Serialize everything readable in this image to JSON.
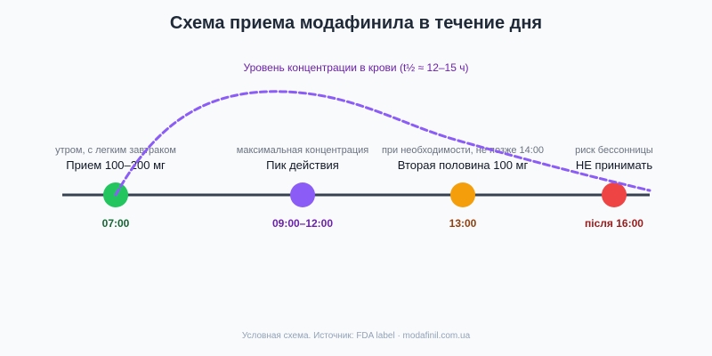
{
  "title": "Схема приема модафинила в течение дня",
  "curve_label": "Уровень концентрации в крови (t½ ≈ 12–15 ч)",
  "footer": "Условная схема. Источник: FDA label · modafinil.com.ua",
  "colors": {
    "axis": "#374151",
    "curve": "#8b5cf6"
  },
  "stages": [
    {
      "subtitle": "утром, с легким завтраком",
      "label": "Прием 100–200 мг",
      "time": "07:00",
      "color": "#22c55e",
      "time_color": "#166534"
    },
    {
      "subtitle": "максимальная концентрация",
      "label": "Пик действия",
      "time": "09:00–12:00",
      "color": "#8b5cf6",
      "time_color": "#6b21a8"
    },
    {
      "subtitle": "при необходимости, не позже 14:00",
      "label": "Вторая половина 100 мг",
      "time": "13:00",
      "color": "#f59e0b",
      "time_color": "#92400e"
    },
    {
      "subtitle": "риск бессонницы",
      "label": "НЕ принимать",
      "time": "після 16:00",
      "color": "#ef4444",
      "time_color": "#991b1b"
    }
  ]
}
